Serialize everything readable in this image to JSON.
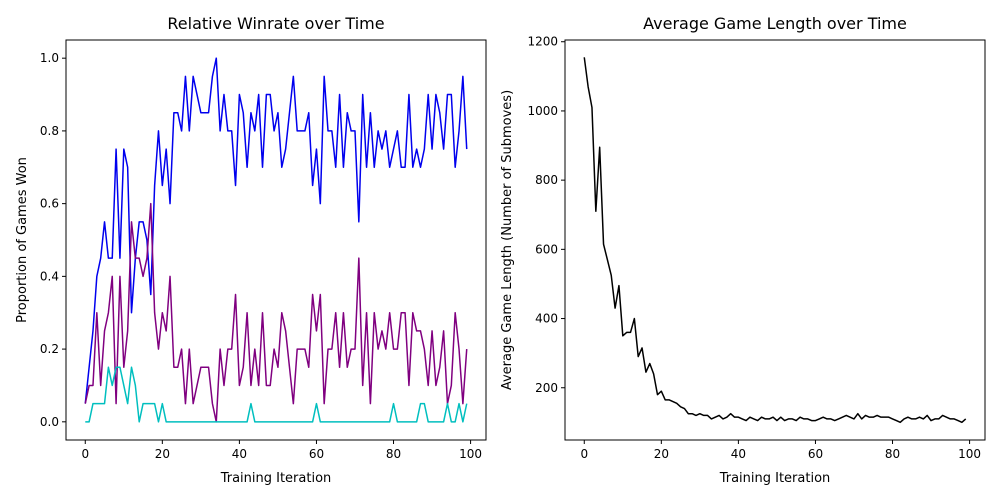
{
  "chart_data": [
    {
      "type": "line",
      "title": "Relative Winrate over Time",
      "xlabel": "Training Iteration",
      "ylabel": "Proportion of Games Won",
      "xlim": [
        -5,
        104
      ],
      "ylim": [
        -0.05,
        1.05
      ],
      "xticks": [
        0,
        20,
        40,
        60,
        80,
        100
      ],
      "yticks": [
        0.0,
        0.2,
        0.4,
        0.6,
        0.8,
        1.0
      ],
      "ytick_labels": [
        "0.0",
        "0.2",
        "0.4",
        "0.6",
        "0.8",
        "1.0"
      ],
      "grid": false,
      "legend": "none",
      "series": [
        {
          "color": "#0000ee",
          "x_start": 0,
          "values": [
            0.05,
            0.15,
            0.25,
            0.4,
            0.45,
            0.55,
            0.45,
            0.45,
            0.75,
            0.45,
            0.75,
            0.7,
            0.3,
            0.45,
            0.55,
            0.55,
            0.5,
            0.35,
            0.65,
            0.8,
            0.65,
            0.75,
            0.6,
            0.85,
            0.85,
            0.8,
            0.95,
            0.8,
            0.95,
            0.9,
            0.85,
            0.85,
            0.85,
            0.95,
            1.0,
            0.8,
            0.9,
            0.8,
            0.8,
            0.65,
            0.9,
            0.85,
            0.7,
            0.85,
            0.8,
            0.9,
            0.7,
            0.9,
            0.9,
            0.8,
            0.85,
            0.7,
            0.75,
            0.85,
            0.95,
            0.8,
            0.8,
            0.8,
            0.85,
            0.65,
            0.75,
            0.6,
            0.95,
            0.8,
            0.8,
            0.7,
            0.9,
            0.7,
            0.85,
            0.8,
            0.8,
            0.55,
            0.9,
            0.7,
            0.85,
            0.7,
            0.8,
            0.75,
            0.8,
            0.7,
            0.75,
            0.8,
            0.7,
            0.7,
            0.9,
            0.7,
            0.75,
            0.7,
            0.75,
            0.9,
            0.75,
            0.9,
            0.85,
            0.75,
            0.9,
            0.9,
            0.7,
            0.8,
            0.95,
            0.75
          ]
        },
        {
          "color": "#800080",
          "x_start": 0,
          "values": [
            0.05,
            0.1,
            0.1,
            0.3,
            0.1,
            0.25,
            0.3,
            0.4,
            0.05,
            0.4,
            0.15,
            0.25,
            0.55,
            0.45,
            0.45,
            0.4,
            0.45,
            0.6,
            0.3,
            0.2,
            0.3,
            0.25,
            0.4,
            0.15,
            0.15,
            0.2,
            0.05,
            0.2,
            0.05,
            0.1,
            0.15,
            0.15,
            0.15,
            0.05,
            0.0,
            0.2,
            0.1,
            0.2,
            0.2,
            0.35,
            0.1,
            0.15,
            0.3,
            0.1,
            0.2,
            0.1,
            0.3,
            0.1,
            0.1,
            0.2,
            0.15,
            0.3,
            0.25,
            0.15,
            0.05,
            0.2,
            0.2,
            0.2,
            0.15,
            0.35,
            0.25,
            0.35,
            0.05,
            0.2,
            0.2,
            0.3,
            0.15,
            0.3,
            0.15,
            0.2,
            0.2,
            0.45,
            0.1,
            0.3,
            0.05,
            0.3,
            0.2,
            0.25,
            0.2,
            0.3,
            0.2,
            0.2,
            0.3,
            0.3,
            0.1,
            0.3,
            0.25,
            0.25,
            0.2,
            0.1,
            0.25,
            0.1,
            0.15,
            0.25,
            0.05,
            0.1,
            0.3,
            0.2,
            0.05,
            0.2
          ]
        },
        {
          "color": "#00bfbf",
          "x_start": 0,
          "values": [
            0.0,
            0.0,
            0.05,
            0.05,
            0.05,
            0.05,
            0.15,
            0.1,
            0.15,
            0.15,
            0.1,
            0.05,
            0.15,
            0.1,
            0.0,
            0.05,
            0.05,
            0.05,
            0.05,
            0.0,
            0.05,
            0.0,
            0.0,
            0.0,
            0.0,
            0.0,
            0.0,
            0.0,
            0.0,
            0.0,
            0.0,
            0.0,
            0.0,
            0.0,
            0.0,
            0.0,
            0.0,
            0.0,
            0.0,
            0.0,
            0.0,
            0.0,
            0.0,
            0.05,
            0.0,
            0.0,
            0.0,
            0.0,
            0.0,
            0.0,
            0.0,
            0.0,
            0.0,
            0.0,
            0.0,
            0.0,
            0.0,
            0.0,
            0.0,
            0.0,
            0.05,
            0.0,
            0.0,
            0.0,
            0.0,
            0.0,
            0.0,
            0.0,
            0.0,
            0.0,
            0.0,
            0.0,
            0.0,
            0.0,
            0.0,
            0.0,
            0.0,
            0.0,
            0.0,
            0.0,
            0.05,
            0.0,
            0.0,
            0.0,
            0.0,
            0.0,
            0.0,
            0.05,
            0.05,
            0.0,
            0.0,
            0.0,
            0.0,
            0.0,
            0.05,
            0.0,
            0.0,
            0.05,
            0.0,
            0.05
          ]
        }
      ]
    },
    {
      "type": "line",
      "title": "Average Game Length over Time",
      "xlabel": "Training Iteration",
      "ylabel": "Average Game Length (Number of Submoves)",
      "xlim": [
        -5,
        104
      ],
      "ylim": [
        49,
        1205
      ],
      "xticks": [
        0,
        20,
        40,
        60,
        80,
        100
      ],
      "yticks": [
        200,
        400,
        600,
        800,
        1000,
        1200
      ],
      "ytick_labels": [
        "200",
        "400",
        "600",
        "800",
        "1000",
        "1200"
      ],
      "grid": false,
      "legend": "none",
      "series": [
        {
          "color": "#000000",
          "x_start": 0,
          "values": [
            1155,
            1070,
            1010,
            710,
            895,
            615,
            570,
            525,
            430,
            495,
            350,
            360,
            360,
            400,
            290,
            315,
            245,
            270,
            240,
            180,
            190,
            165,
            165,
            160,
            155,
            145,
            140,
            125,
            125,
            120,
            125,
            120,
            120,
            110,
            115,
            120,
            110,
            115,
            125,
            115,
            115,
            110,
            105,
            115,
            110,
            105,
            115,
            110,
            110,
            115,
            105,
            115,
            105,
            110,
            110,
            105,
            115,
            110,
            110,
            105,
            105,
            110,
            115,
            110,
            110,
            105,
            110,
            115,
            120,
            115,
            110,
            125,
            110,
            120,
            115,
            115,
            120,
            115,
            115,
            115,
            110,
            105,
            100,
            110,
            115,
            110,
            110,
            115,
            110,
            120,
            105,
            110,
            110,
            120,
            115,
            110,
            110,
            105,
            100,
            110
          ]
        }
      ]
    }
  ]
}
